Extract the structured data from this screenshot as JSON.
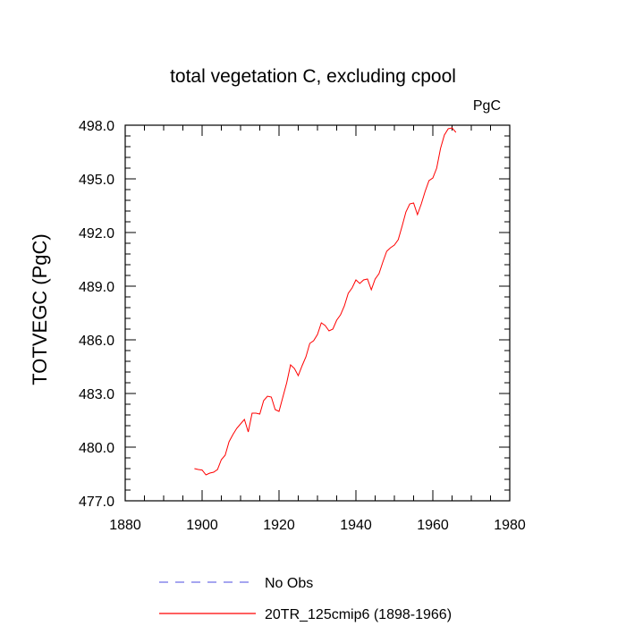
{
  "chart_data": {
    "type": "line",
    "title": "total vegetation C, excluding cpool",
    "units": "PgC",
    "ylabel": "TOTVEGC  (PgC)",
    "xlabel": "",
    "xlim": [
      1880,
      1980
    ],
    "ylim": [
      477.0,
      498.0
    ],
    "x_ticks": [
      "1880",
      "1900",
      "1920",
      "1940",
      "1960",
      "1980"
    ],
    "y_ticks": [
      "477.0",
      "480.0",
      "483.0",
      "486.0",
      "489.0",
      "492.0",
      "495.0",
      "498.0"
    ],
    "grid": false,
    "legend_position": "bottom",
    "series": [
      {
        "name": "No Obs",
        "color": "#6f6fe6",
        "dashed": true,
        "x": [],
        "y": []
      },
      {
        "name": "20TR_125cmip6 (1898-1966)",
        "color": "#ff0000",
        "dashed": false,
        "x": [
          1898,
          1899,
          1900,
          1901,
          1902,
          1903,
          1904,
          1905,
          1906,
          1907,
          1908,
          1909,
          1910,
          1911,
          1912,
          1913,
          1914,
          1915,
          1916,
          1917,
          1918,
          1919,
          1920,
          1921,
          1922,
          1923,
          1924,
          1925,
          1926,
          1927,
          1928,
          1929,
          1930,
          1931,
          1932,
          1933,
          1934,
          1935,
          1936,
          1937,
          1938,
          1939,
          1940,
          1941,
          1942,
          1943,
          1944,
          1945,
          1946,
          1947,
          1948,
          1949,
          1950,
          1951,
          1952,
          1953,
          1954,
          1955,
          1956,
          1957,
          1958,
          1959,
          1960,
          1961,
          1962,
          1963,
          1964,
          1965,
          1966
        ],
        "y": [
          478.8,
          478.75,
          478.72,
          478.45,
          478.55,
          478.6,
          478.75,
          479.3,
          479.55,
          480.3,
          480.7,
          481.05,
          481.3,
          481.55,
          480.85,
          481.9,
          481.9,
          481.85,
          482.6,
          482.85,
          482.8,
          482.1,
          482.0,
          482.8,
          483.6,
          484.6,
          484.4,
          484.0,
          484.55,
          485.05,
          485.8,
          485.95,
          486.3,
          486.95,
          486.8,
          486.5,
          486.6,
          487.1,
          487.4,
          487.9,
          488.6,
          488.9,
          489.35,
          489.15,
          489.35,
          489.4,
          488.8,
          489.4,
          489.7,
          490.35,
          490.95,
          491.15,
          491.3,
          491.6,
          492.35,
          493.15,
          493.6,
          493.65,
          493.0,
          493.6,
          494.3,
          494.9,
          495.05,
          495.6,
          496.7,
          497.45,
          497.8,
          497.85,
          497.6
        ]
      }
    ]
  }
}
